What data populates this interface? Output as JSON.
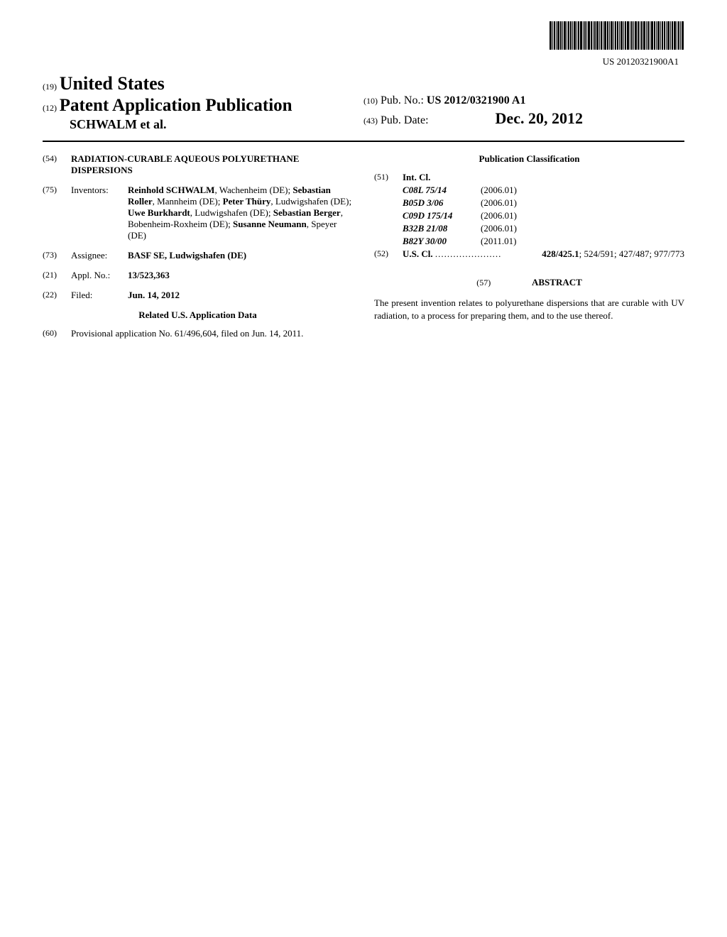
{
  "barcode": {
    "pub_id": "US 20120321900A1"
  },
  "header": {
    "country_code": "(19)",
    "country_name": "United States",
    "pub_type_code": "(12)",
    "pub_type": "Patent Application Publication",
    "authors": "SCHWALM et al.",
    "pub_no_code": "(10)",
    "pub_no_label": "Pub. No.:",
    "pub_no_value": "US 2012/0321900 A1",
    "pub_date_code": "(43)",
    "pub_date_label": "Pub. Date:",
    "pub_date_value": "Dec. 20, 2012"
  },
  "title": {
    "code": "(54)",
    "text": "RADIATION-CURABLE AQUEOUS POLYURETHANE DISPERSIONS"
  },
  "inventors": {
    "code": "(75)",
    "label": "Inventors:",
    "list": "Reinhold SCHWALM, Wachenheim (DE); Sebastian Roller, Mannheim (DE); Peter Thüry, Ludwigshafen (DE); Uwe Burkhardt, Ludwigshafen (DE); Sebastian Berger, Bobenheim-Roxheim (DE); Susanne Neumann, Speyer (DE)"
  },
  "assignee": {
    "code": "(73)",
    "label": "Assignee:",
    "value": "BASF SE, Ludwigshafen (DE)"
  },
  "appl_no": {
    "code": "(21)",
    "label": "Appl. No.:",
    "value": "13/523,363"
  },
  "filed": {
    "code": "(22)",
    "label": "Filed:",
    "value": "Jun. 14, 2012"
  },
  "related": {
    "header": "Related U.S. Application Data",
    "code": "(60)",
    "text": "Provisional application No. 61/496,604, filed on Jun. 14, 2011."
  },
  "classification": {
    "header": "Publication Classification",
    "int_cl_code": "(51)",
    "int_cl_label": "Int. Cl.",
    "int_classes": [
      {
        "code": "C08L 75/14",
        "year": "(2006.01)"
      },
      {
        "code": "B05D 3/06",
        "year": "(2006.01)"
      },
      {
        "code": "C09D 175/14",
        "year": "(2006.01)"
      },
      {
        "code": "B32B 21/08",
        "year": "(2006.01)"
      },
      {
        "code": "B82Y 30/00",
        "year": "(2011.01)"
      }
    ],
    "us_cl_code": "(52)",
    "us_cl_label": "U.S. Cl.",
    "us_cl_bold": "428/425.1",
    "us_cl_rest": "; 524/591; 427/487; 977/773"
  },
  "abstract": {
    "code": "(57)",
    "header": "ABSTRACT",
    "text": "The present invention relates to polyurethane dispersions that are curable with UV radiation, to a process for preparing them, and to the use thereof."
  }
}
